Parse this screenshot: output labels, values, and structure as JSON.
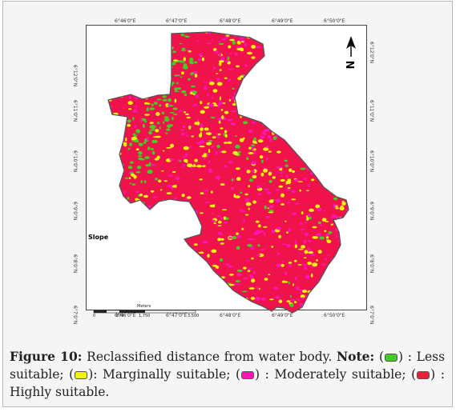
{
  "map": {
    "label": "Slope",
    "north_letter": "N",
    "top_ticks": [
      "6°46'0\"E",
      "6°47'0\"E",
      "6°48'0\"E",
      "6°49'0\"E",
      "6°50'0\"E"
    ],
    "bottom_ticks": [
      "6°46'0\"E",
      "6°47'0\"E",
      "6°48'0\"E",
      "6°49'0\"E",
      "6°50'0\"E"
    ],
    "left_ticks": [
      "6°12'0\"N",
      "6°11'0\"N",
      "6°10'0\"N",
      "6°9'0\"N",
      "6°8'0\"N",
      "6°7'0\"N"
    ],
    "right_ticks": [
      "6°12'0\"N",
      "6°11'0\"N",
      "6°10'0\"N",
      "6°9'0\"N",
      "6°8'0\"N",
      "6°7'0\"N"
    ],
    "scale_bar": {
      "unit": "Meters",
      "labels": [
        "0",
        "875",
        "1,750",
        "3,500"
      ]
    },
    "colors": {
      "less": "#44cc22",
      "marginal": "#f2f20a",
      "moderate": "#ff14b4",
      "high": "#ee1f3c",
      "base": "#f0124a"
    }
  },
  "caption": {
    "figure_label": "Figure 10:",
    "text": "Reclassified distance from water body.",
    "note_label": "Note:",
    "open_paren": "(",
    "close_paren": ")",
    "less": ": Less suitable;",
    "marginal": ": Marginally suitable;",
    "moderate": ": Moderately suitable;",
    "high": ": Highly suitable."
  }
}
